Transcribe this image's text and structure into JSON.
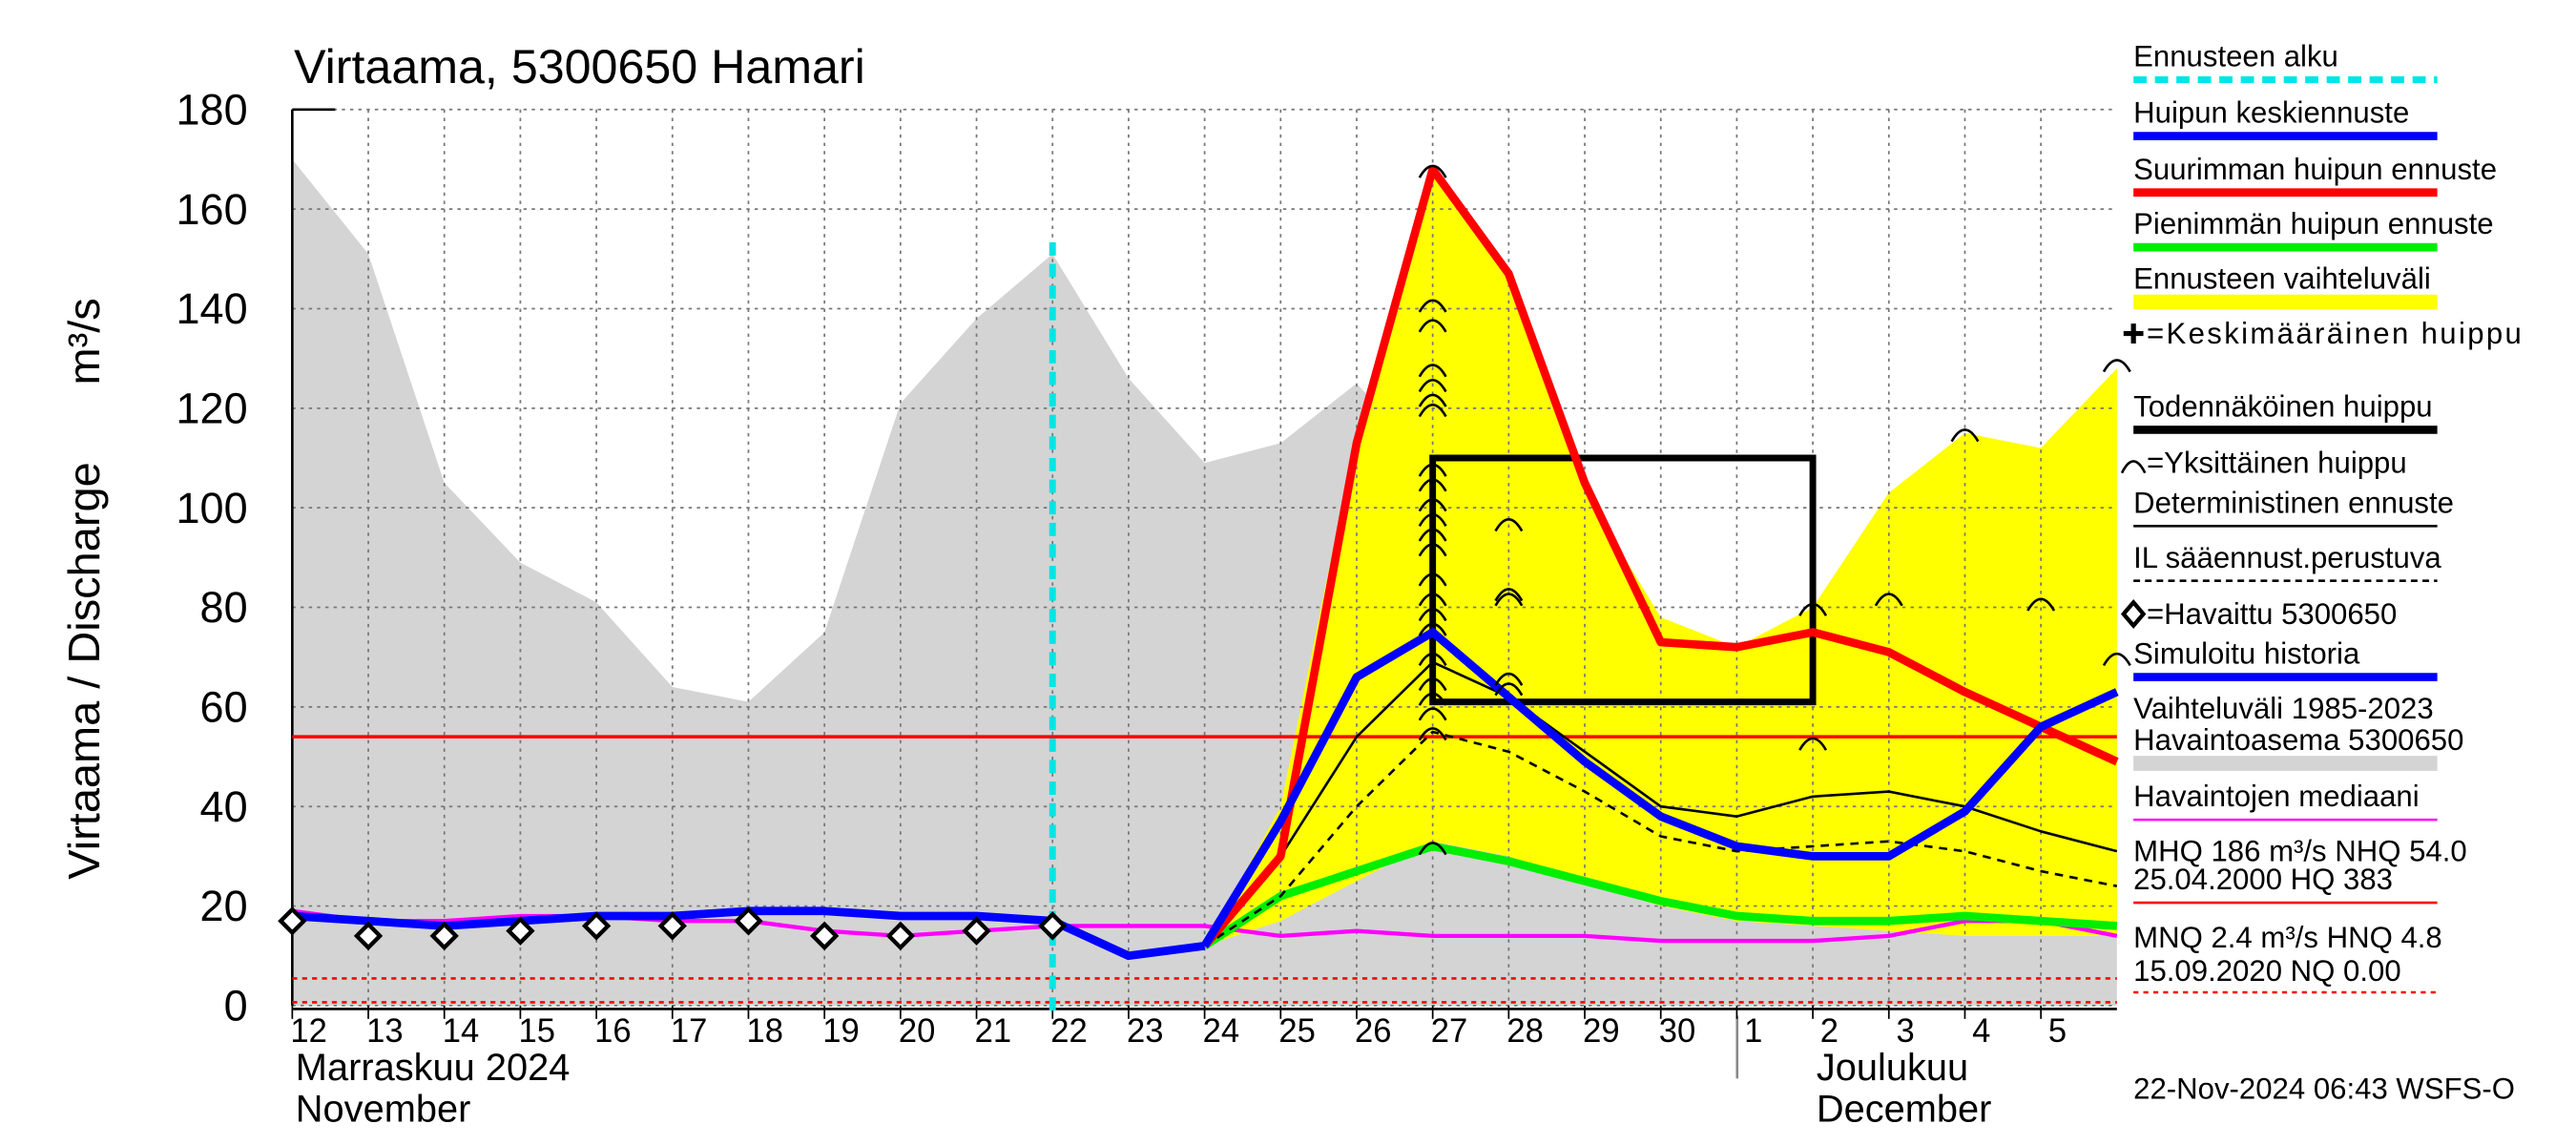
{
  "chart_data": {
    "type": "line",
    "title": "Virtaama, 5300650 Hamari",
    "y_label": "Virtaama / Discharge",
    "y_unit": "m³/s",
    "months": [
      "Marraskuu 2024",
      "November",
      "Joulukuu",
      "December"
    ],
    "timestamp": "22-Nov-2024 06:43 WSFS-O",
    "xlim": [
      0,
      24
    ],
    "xticks": [
      {
        "value": 0,
        "label": "12"
      },
      {
        "value": 1,
        "label": "13"
      },
      {
        "value": 2,
        "label": "14"
      },
      {
        "value": 3,
        "label": "15"
      },
      {
        "value": 4,
        "label": "16"
      },
      {
        "value": 5,
        "label": "17"
      },
      {
        "value": 6,
        "label": "18"
      },
      {
        "value": 7,
        "label": "19"
      },
      {
        "value": 8,
        "label": "20"
      },
      {
        "value": 9,
        "label": "21"
      },
      {
        "value": 10,
        "label": "22"
      },
      {
        "value": 11,
        "label": "23"
      },
      {
        "value": 12,
        "label": "24"
      },
      {
        "value": 13,
        "label": "25"
      },
      {
        "value": 14,
        "label": "26"
      },
      {
        "value": 15,
        "label": "27"
      },
      {
        "value": 16,
        "label": "28"
      },
      {
        "value": 17,
        "label": "29"
      },
      {
        "value": 18,
        "label": "30"
      },
      {
        "value": 19,
        "label": "1"
      },
      {
        "value": 20,
        "label": "2"
      },
      {
        "value": 21,
        "label": "3"
      },
      {
        "value": 22,
        "label": "4"
      },
      {
        "value": 23,
        "label": "5"
      }
    ],
    "ylim": [
      0,
      180
    ],
    "yticks": [
      0,
      20,
      40,
      60,
      80,
      100,
      120,
      140,
      160,
      180
    ],
    "grid": true,
    "forecast_start": 10,
    "areas": [
      {
        "color": "#d4d4d4",
        "x": [
          0,
          1,
          2,
          3,
          4,
          5,
          6,
          7,
          8,
          9,
          10,
          11,
          12,
          13,
          14,
          15,
          16,
          17,
          18,
          19,
          20,
          21,
          22,
          23,
          24
        ],
        "upper": [
          170,
          151,
          105,
          89,
          81,
          64,
          61,
          75,
          121,
          138,
          151,
          126,
          109,
          113,
          125,
          108,
          86,
          82,
          58,
          64,
          61,
          61,
          90,
          90,
          70
        ]
      },
      {
        "color": "#ffff00",
        "x": [
          12,
          13,
          14,
          15,
          16,
          17,
          18,
          19,
          20,
          21,
          22,
          23,
          24
        ],
        "upper": [
          12,
          40,
          115,
          168,
          148,
          103,
          78,
          72,
          80,
          103,
          115,
          112,
          128
        ],
        "lower": [
          12,
          17,
          25,
          33,
          30,
          25,
          20,
          17,
          16,
          15,
          14,
          14,
          14
        ]
      }
    ],
    "series": [
      {
        "color": "#ff00ff",
        "style": "medium",
        "x": [
          0,
          1,
          2,
          3,
          4,
          5,
          6,
          7,
          8,
          9,
          10,
          11,
          12,
          13,
          14,
          15,
          16,
          17,
          18,
          19,
          20,
          21,
          22,
          23,
          24
        ],
        "values": [
          19,
          17,
          17,
          18,
          18,
          17,
          17,
          15,
          14,
          15,
          16,
          16,
          16,
          14,
          15,
          14,
          14,
          14,
          13,
          13,
          13,
          14,
          17,
          17,
          14
        ]
      },
      {
        "color": "#00ee00",
        "style": "thick",
        "x": [
          12,
          13,
          14,
          15,
          16,
          17,
          18,
          19,
          20,
          21,
          22,
          23,
          24
        ],
        "values": [
          12,
          22,
          27,
          32,
          29,
          25,
          21,
          18,
          17,
          17,
          18,
          17,
          16
        ]
      },
      {
        "color": "#000000",
        "style": "dashed",
        "x": [
          12,
          13,
          14,
          15,
          16,
          17,
          18,
          19,
          20,
          21,
          22,
          23,
          24
        ],
        "values": [
          12,
          22,
          40,
          55,
          51,
          43,
          34,
          31,
          32,
          33,
          31,
          27,
          24
        ]
      },
      {
        "color": "#000000",
        "style": "thin",
        "x": [
          12,
          13,
          14,
          15,
          16,
          17,
          18,
          19,
          20,
          21,
          22,
          23,
          24
        ],
        "values": [
          12,
          30,
          54,
          69,
          62,
          51,
          40,
          38,
          42,
          43,
          40,
          35,
          31
        ]
      },
      {
        "color": "#ff0000",
        "style": "thick",
        "x": [
          12,
          13,
          14,
          15,
          16,
          17,
          18,
          19,
          20,
          21,
          22,
          23,
          24
        ],
        "values": [
          12,
          30,
          113,
          168,
          147,
          105,
          73,
          72,
          75,
          71,
          63,
          56,
          49
        ]
      },
      {
        "color": "#0000ff",
        "style": "thick",
        "x": [
          0,
          1,
          2,
          3,
          4,
          5,
          6,
          7,
          8,
          9,
          10,
          11,
          12
        ],
        "values": [
          18,
          17,
          16,
          17,
          18,
          18,
          19,
          19,
          18,
          18,
          17,
          10,
          12
        ]
      },
      {
        "color": "#0000ff",
        "style": "thick",
        "x": [
          12,
          13,
          14,
          15,
          16,
          17,
          18,
          19,
          20,
          21,
          22,
          23,
          24
        ],
        "values": [
          12,
          37,
          66,
          75,
          62,
          49,
          38,
          32,
          30,
          30,
          39,
          56,
          63
        ]
      }
    ],
    "observations": {
      "x": [
        0,
        1,
        2,
        3,
        4,
        5,
        6,
        7,
        8,
        9,
        10
      ],
      "values": [
        17,
        14,
        14,
        15,
        16,
        16,
        17,
        14,
        14,
        15,
        16
      ]
    },
    "peaks": {
      "x": [
        15,
        15,
        15,
        15,
        15,
        15,
        15,
        15,
        15,
        15,
        15,
        15,
        15,
        15,
        15,
        15,
        15,
        15,
        15,
        15,
        15,
        15,
        15,
        16,
        16,
        16,
        16,
        16,
        20,
        20,
        21,
        22,
        23,
        24,
        24
      ],
      "values": [
        168,
        141,
        137,
        128,
        125,
        122,
        120,
        108,
        105,
        101,
        98,
        95,
        92,
        86,
        82,
        79,
        76,
        70,
        65,
        62,
        59,
        55,
        32,
        97,
        83,
        82,
        66,
        64,
        80,
        53,
        82,
        115,
        81,
        129,
        70
      ]
    },
    "box": {
      "xlim": [
        15,
        20
      ],
      "ylim": [
        61,
        110
      ]
    },
    "ref_lines": [
      {
        "value": 54,
        "color": "#ff0000",
        "style": "solid"
      },
      {
        "value": 4.8,
        "color": "#ff0000",
        "style": "dotted"
      },
      {
        "value": 0,
        "color": "#ff0000",
        "style": "dotted"
      }
    ],
    "legend": [
      {
        "label": "Ennusteen alku",
        "color": "#00e5e5",
        "style": "dashed"
      },
      {
        "label": "Huipun keskiennuste",
        "color": "#0000ff",
        "style": "bar"
      },
      {
        "label": "Suurimman huipun ennuste",
        "color": "#ff0000",
        "style": "bar"
      },
      {
        "label": "Pienimmän huipun ennuste",
        "color": "#00ee00",
        "style": "bar"
      },
      {
        "label": "Ennusteen vaihteluväli",
        "color": "#ffff00",
        "style": "wide"
      },
      {
        "label": "=Keskimääräinen huippu",
        "color": "#000000",
        "style": "plus"
      },
      {
        "label": "Todennäköinen huippu",
        "color": "#000000",
        "style": "bar"
      },
      {
        "label": "=Yksittäinen huippu",
        "color": "#000000",
        "style": "arc"
      },
      {
        "label": "Deterministinen ennuste",
        "color": "#000000",
        "style": "thin"
      },
      {
        "label": "IL sääennust.perustuva",
        "color": "#000000",
        "style": "dotted"
      },
      {
        "label": "=Havaittu 5300650",
        "color": "#000000",
        "style": "diamond"
      },
      {
        "label": "Simuloitu historia",
        "color": "#0000ff",
        "style": "bar"
      },
      {
        "label": "Vaihteluväli 1985-2023",
        "color": "#d4d4d4",
        "style": "none"
      },
      {
        "label": " Havaintoasema 5300650",
        "color": "#d4d4d4",
        "style": "wide"
      },
      {
        "label": "Havaintojen mediaani",
        "color": "#ff00ff",
        "style": "thin"
      }
    ],
    "stats": [
      "MHQ  186 m³/s NHQ 54.0",
      "25.04.2000 HQ  383",
      "MNQ  2.4 m³/s HNQ  4.8",
      "15.09.2020 NQ 0.00"
    ]
  }
}
